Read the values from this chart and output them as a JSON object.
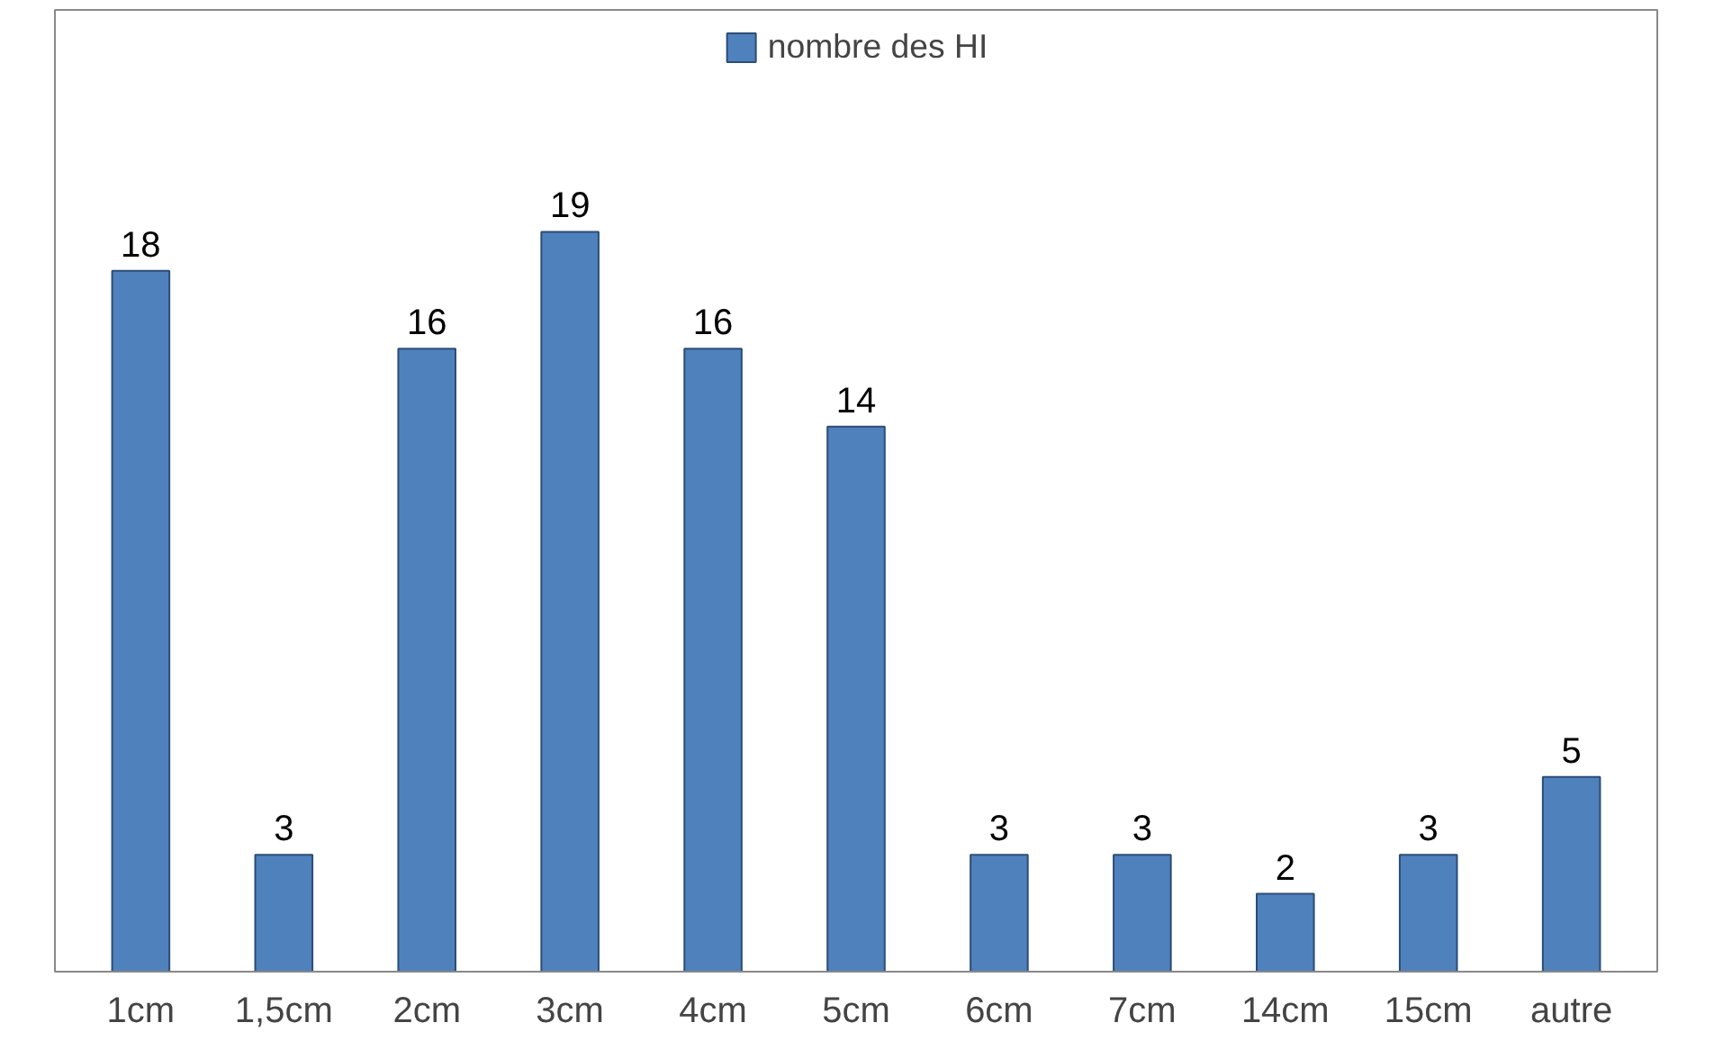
{
  "chart_data": {
    "type": "bar",
    "categories": [
      "1cm",
      "1,5cm",
      "2cm",
      "3cm",
      "4cm",
      "5cm",
      "6cm",
      "7cm",
      "14cm",
      "15cm",
      "autre"
    ],
    "series": [
      {
        "name": "nombre des HI",
        "color": "#4f81bd",
        "values": [
          18,
          3,
          16,
          19,
          16,
          14,
          3,
          3,
          2,
          3,
          5
        ]
      }
    ],
    "data_labels": true,
    "legend": "top",
    "grid": false
  }
}
